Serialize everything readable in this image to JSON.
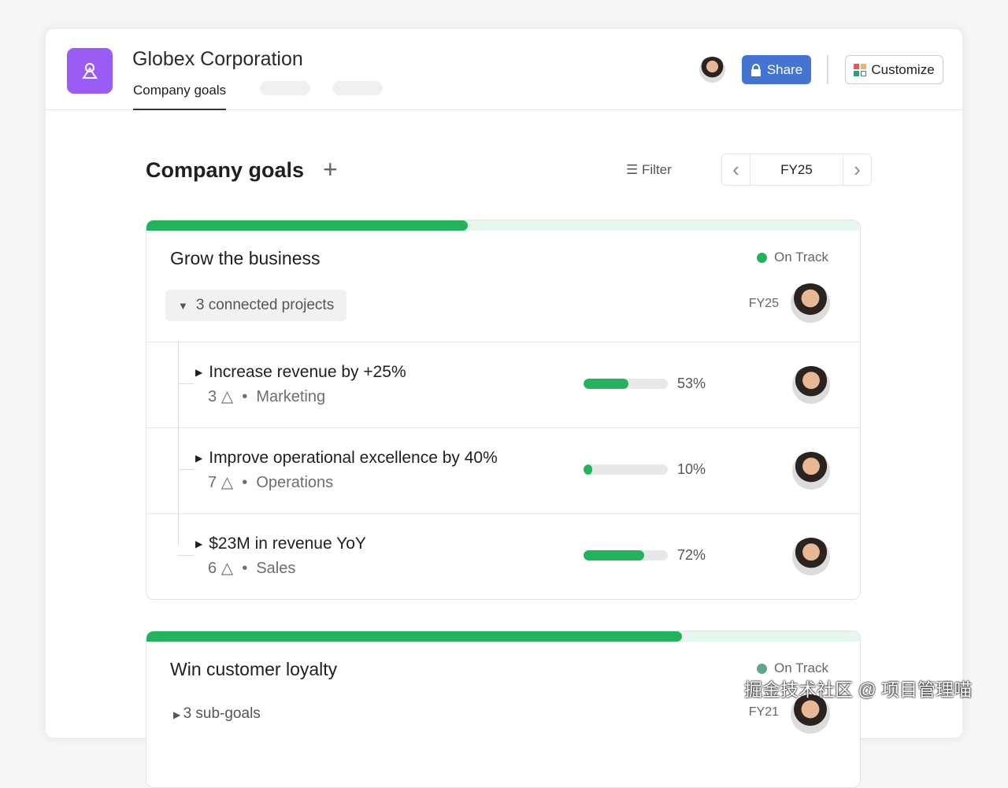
{
  "header": {
    "org_name": "Globex Corporation",
    "active_tab": "Company goals",
    "share_label": "Share",
    "customize_label": "Customize"
  },
  "toolbar": {
    "title": "Company goals",
    "add": "+",
    "filter_label": "Filter",
    "period": "FY25",
    "prev": "‹",
    "next": "›"
  },
  "goals": [
    {
      "title": "Grow the business",
      "status": "On Track",
      "status_color": "#23b35c",
      "progress": 45,
      "connected_label": "3 connected projects",
      "period": "FY25",
      "subgoals": [
        {
          "title": "Increase revenue by +25%",
          "count": "3",
          "team": "Marketing",
          "progress": 53,
          "pct_label": "53%"
        },
        {
          "title": "Improve operational excellence by 40%",
          "count": "7",
          "team": "Operations",
          "progress": 10,
          "pct_label": "10%"
        },
        {
          "title": "$23M in revenue YoY",
          "count": "6",
          "team": "Sales",
          "progress": 72,
          "pct_label": "72%"
        }
      ]
    },
    {
      "title": "Win customer loyalty",
      "status": "On Track",
      "status_color": "#5ea88a",
      "progress": 75,
      "connected_label": "3 sub-goals",
      "period": "FY21"
    }
  ],
  "watermark": "掘金技术社区 @ 项目管理喵"
}
